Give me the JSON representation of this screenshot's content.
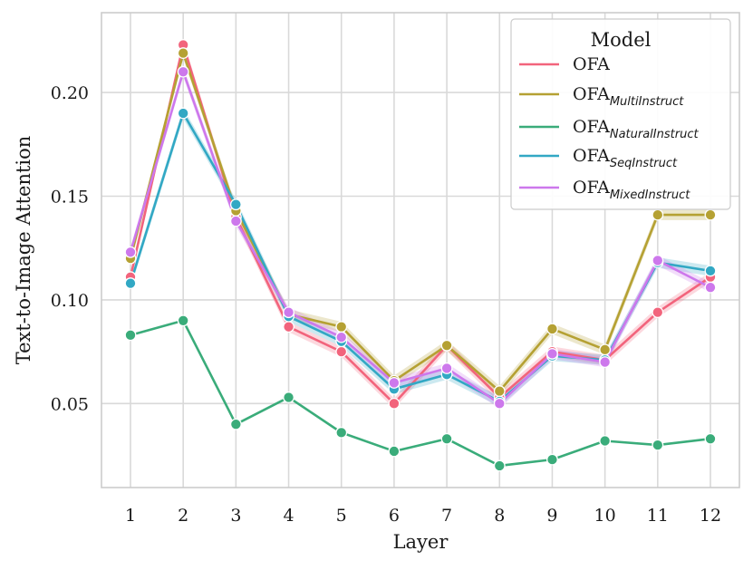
{
  "chart_data": {
    "type": "line",
    "xlabel": "Layer",
    "ylabel": "Text-to-Image Attention",
    "x": [
      1,
      2,
      3,
      4,
      5,
      6,
      7,
      8,
      9,
      10,
      11,
      12
    ],
    "x_tick_labels": [
      "1",
      "2",
      "3",
      "4",
      "5",
      "6",
      "7",
      "8",
      "9",
      "10",
      "11",
      "12"
    ],
    "xlim": [
      0.45,
      12.55
    ],
    "ylim": [
      0.0095,
      0.2385
    ],
    "y_ticks": [
      0.05,
      0.1,
      0.15,
      0.2
    ],
    "y_tick_labels": [
      "0.05",
      "0.10",
      "0.15",
      "0.20"
    ],
    "grid": true,
    "legend": {
      "title": "Model",
      "placement": "top-right",
      "entries": [
        {
          "base": "OFA",
          "sub": ""
        },
        {
          "base": "OFA",
          "sub": "MultiInstruct"
        },
        {
          "base": "OFA",
          "sub": "NaturalInstruct"
        },
        {
          "base": "OFA",
          "sub": "SeqInstruct"
        },
        {
          "base": "OFA",
          "sub": "MixedInstruct"
        }
      ]
    },
    "series": [
      {
        "name": "OFA",
        "color": "#f2647c",
        "band": 0.0025,
        "values": [
          0.111,
          0.223,
          0.14,
          0.087,
          0.075,
          0.05,
          0.078,
          0.053,
          0.075,
          0.071,
          0.094,
          0.111
        ]
      },
      {
        "name": "OFA_MultiInstruct",
        "color": "#b5a133",
        "band": 0.0025,
        "values": [
          0.12,
          0.219,
          0.143,
          0.093,
          0.087,
          0.061,
          0.078,
          0.056,
          0.086,
          0.076,
          0.141,
          0.141
        ]
      },
      {
        "name": "OFA_NaturalInstruct",
        "color": "#3aac7a",
        "band": 0.0,
        "values": [
          0.083,
          0.09,
          0.04,
          0.053,
          0.036,
          0.027,
          0.033,
          0.02,
          0.023,
          0.032,
          0.03,
          0.033
        ]
      },
      {
        "name": "OFA_SeqInstruct",
        "color": "#32a8c4",
        "band": 0.0025,
        "values": [
          0.108,
          0.19,
          0.146,
          0.092,
          0.08,
          0.057,
          0.064,
          0.051,
          0.073,
          0.071,
          0.118,
          0.114
        ]
      },
      {
        "name": "OFA_MixedInstruct",
        "color": "#cd78ec",
        "band": 0.0025,
        "values": [
          0.123,
          0.21,
          0.138,
          0.094,
          0.082,
          0.06,
          0.067,
          0.05,
          0.074,
          0.07,
          0.119,
          0.106
        ]
      }
    ]
  }
}
